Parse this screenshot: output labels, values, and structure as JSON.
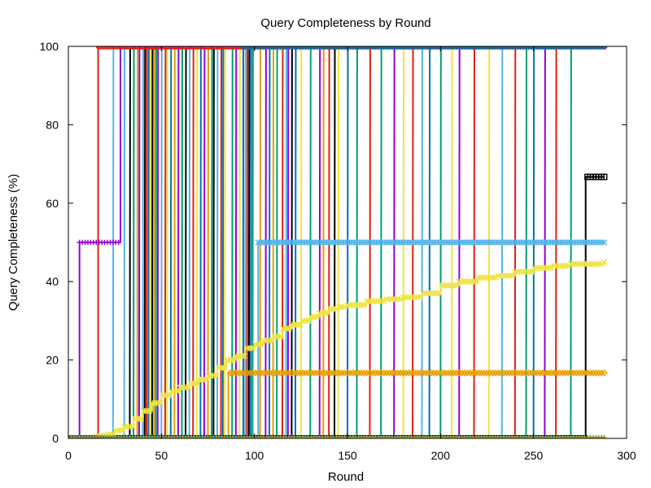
{
  "chart_data": {
    "type": "line",
    "title": "Query Completeness by Round",
    "xlabel": "Round",
    "ylabel": "Query Completeness (%)",
    "xlim": [
      0,
      300
    ],
    "ylim": [
      0,
      100
    ],
    "x_ticks": [
      0,
      50,
      100,
      150,
      200,
      250,
      300
    ],
    "y_ticks": [
      0,
      20,
      40,
      60,
      80,
      100
    ],
    "x_tick_labels": [
      "0",
      "50",
      "100",
      "150",
      "200",
      "250",
      "300"
    ],
    "y_tick_labels": [
      "0",
      "20",
      "40",
      "60",
      "80",
      "100"
    ],
    "grid": false,
    "legend": "none",
    "series": [
      {
        "color": "#9400d3",
        "marker": "plus",
        "points": [
          [
            0,
            0
          ],
          [
            5,
            0
          ],
          [
            6,
            50
          ],
          [
            27,
            50
          ],
          [
            28,
            100
          ],
          [
            288,
            100
          ]
        ]
      },
      {
        "color": "#56b4e9",
        "marker": "x",
        "points": [
          [
            0,
            0
          ],
          [
            101,
            0
          ],
          [
            102,
            50
          ],
          [
            288,
            50
          ]
        ]
      },
      {
        "color": "#000000",
        "marker": "square",
        "points": [
          [
            0,
            0
          ],
          [
            277,
            0
          ],
          [
            278,
            66.7
          ],
          [
            288,
            66.7
          ]
        ]
      },
      {
        "color": "#e69f00",
        "marker": "diamond",
        "points": [
          [
            0,
            0
          ],
          [
            85,
            0
          ],
          [
            86,
            16.7
          ],
          [
            288,
            16.7
          ]
        ]
      },
      {
        "color": "#f0e442",
        "marker": "x",
        "points": [
          [
            0,
            0
          ],
          [
            12,
            0
          ],
          [
            14,
            0.6
          ],
          [
            20,
            1
          ],
          [
            25,
            2
          ],
          [
            30,
            3
          ],
          [
            35,
            5
          ],
          [
            40,
            7
          ],
          [
            45,
            9
          ],
          [
            50,
            11
          ],
          [
            55,
            12
          ],
          [
            60,
            13
          ],
          [
            65,
            14
          ],
          [
            70,
            15
          ],
          [
            75,
            16
          ],
          [
            80,
            18
          ],
          [
            85,
            20
          ],
          [
            90,
            21
          ],
          [
            95,
            23
          ],
          [
            100,
            24
          ],
          [
            105,
            25
          ],
          [
            110,
            26
          ],
          [
            115,
            28
          ],
          [
            120,
            29
          ],
          [
            125,
            30
          ],
          [
            130,
            31
          ],
          [
            135,
            32
          ],
          [
            140,
            33
          ],
          [
            145,
            33.5
          ],
          [
            150,
            34
          ],
          [
            160,
            35
          ],
          [
            170,
            35.5
          ],
          [
            180,
            36
          ],
          [
            190,
            37
          ],
          [
            200,
            39
          ],
          [
            210,
            40
          ],
          [
            220,
            41
          ],
          [
            230,
            41.5
          ],
          [
            240,
            42.5
          ],
          [
            250,
            43.5
          ],
          [
            260,
            44
          ],
          [
            270,
            44.5
          ],
          [
            288,
            45
          ]
        ]
      },
      {
        "color": "#e51e10",
        "marker": "circle",
        "points": [
          [
            0,
            0
          ],
          [
            15,
            0
          ],
          [
            16,
            100
          ],
          [
            288,
            100
          ]
        ]
      },
      {
        "color": "#0072b2",
        "marker": "diamond",
        "points": [
          [
            0,
            0
          ],
          [
            93,
            0
          ],
          [
            94,
            100
          ],
          [
            288,
            100
          ]
        ]
      },
      {
        "color": "#009e73",
        "marker": "triangle",
        "points": [
          [
            0,
            0
          ],
          [
            288,
            0
          ]
        ]
      },
      {
        "color": "#e69f00",
        "marker": "plus",
        "points": [
          [
            0,
            0
          ],
          [
            288,
            0
          ]
        ]
      }
    ],
    "transitions": [
      {
        "x": 24,
        "color": "#56b4e9"
      },
      {
        "x": 30,
        "color": "#56b4e9"
      },
      {
        "x": 33,
        "color": "#000000"
      },
      {
        "x": 35,
        "color": "#009e73"
      },
      {
        "x": 37,
        "color": "#e69f00"
      },
      {
        "x": 38,
        "color": "#9400d3"
      },
      {
        "x": 40,
        "color": "#56b4e9"
      },
      {
        "x": 41,
        "color": "#000000"
      },
      {
        "x": 42,
        "color": "#e51e10"
      },
      {
        "x": 43,
        "color": "#0072b2"
      },
      {
        "x": 44,
        "color": "#f0e442"
      },
      {
        "x": 45,
        "color": "#000000"
      },
      {
        "x": 46,
        "color": "#e69f00"
      },
      {
        "x": 47,
        "color": "#009e73"
      },
      {
        "x": 48,
        "color": "#9400d3"
      },
      {
        "x": 50,
        "color": "#56b4e9"
      },
      {
        "x": 52,
        "color": "#e51e10"
      },
      {
        "x": 53,
        "color": "#f0e442"
      },
      {
        "x": 55,
        "color": "#0072b2"
      },
      {
        "x": 57,
        "color": "#e69f00"
      },
      {
        "x": 59,
        "color": "#9400d3"
      },
      {
        "x": 61,
        "color": "#009e73"
      },
      {
        "x": 63,
        "color": "#000000"
      },
      {
        "x": 65,
        "color": "#56b4e9"
      },
      {
        "x": 67,
        "color": "#e51e10"
      },
      {
        "x": 69,
        "color": "#f0e442"
      },
      {
        "x": 71,
        "color": "#0072b2"
      },
      {
        "x": 73,
        "color": "#9400d3"
      },
      {
        "x": 75,
        "color": "#e69f00"
      },
      {
        "x": 77,
        "color": "#009e73"
      },
      {
        "x": 78,
        "color": "#000000"
      },
      {
        "x": 80,
        "color": "#56b4e9"
      },
      {
        "x": 82,
        "color": "#e51e10"
      },
      {
        "x": 83,
        "color": "#0072b2"
      },
      {
        "x": 84,
        "color": "#f0e442"
      },
      {
        "x": 88,
        "color": "#009e73"
      },
      {
        "x": 90,
        "color": "#9400d3"
      },
      {
        "x": 92,
        "color": "#f0e442"
      },
      {
        "x": 95,
        "color": "#56b4e9"
      },
      {
        "x": 96,
        "color": "#e51e10"
      },
      {
        "x": 97,
        "color": "#000000"
      },
      {
        "x": 98,
        "color": "#0072b2"
      },
      {
        "x": 99,
        "color": "#009e73"
      },
      {
        "x": 103,
        "color": "#e69f00"
      },
      {
        "x": 106,
        "color": "#9400d3"
      },
      {
        "x": 108,
        "color": "#0072b2"
      },
      {
        "x": 110,
        "color": "#e69f00"
      },
      {
        "x": 112,
        "color": "#009e73"
      },
      {
        "x": 115,
        "color": "#e51e10"
      },
      {
        "x": 117,
        "color": "#56b4e9"
      },
      {
        "x": 118,
        "color": "#9400d3"
      },
      {
        "x": 120,
        "color": "#000000"
      },
      {
        "x": 122,
        "color": "#0072b2"
      },
      {
        "x": 125,
        "color": "#f0e442"
      },
      {
        "x": 130,
        "color": "#009e73"
      },
      {
        "x": 135,
        "color": "#9400d3"
      },
      {
        "x": 137,
        "color": "#e69f00"
      },
      {
        "x": 140,
        "color": "#e51e10"
      },
      {
        "x": 143,
        "color": "#000000"
      },
      {
        "x": 145,
        "color": "#f0e442"
      },
      {
        "x": 150,
        "color": "#0072b2"
      },
      {
        "x": 155,
        "color": "#009e73"
      },
      {
        "x": 162,
        "color": "#e51e10"
      },
      {
        "x": 168,
        "color": "#009e73"
      },
      {
        "x": 175,
        "color": "#9400d3"
      },
      {
        "x": 180,
        "color": "#f0e442"
      },
      {
        "x": 185,
        "color": "#e51e10"
      },
      {
        "x": 190,
        "color": "#56b4e9"
      },
      {
        "x": 194,
        "color": "#0072b2"
      },
      {
        "x": 200,
        "color": "#009e73"
      },
      {
        "x": 206,
        "color": "#f0e442"
      },
      {
        "x": 210,
        "color": "#9400d3"
      },
      {
        "x": 218,
        "color": "#e51e10"
      },
      {
        "x": 226,
        "color": "#f0e442"
      },
      {
        "x": 233,
        "color": "#56b4e9"
      },
      {
        "x": 240,
        "color": "#e51e10"
      },
      {
        "x": 246,
        "color": "#009e73"
      },
      {
        "x": 250,
        "color": "#0072b2"
      },
      {
        "x": 256,
        "color": "#9400d3"
      },
      {
        "x": 262,
        "color": "#e51e10"
      },
      {
        "x": 270,
        "color": "#009e73"
      }
    ]
  }
}
